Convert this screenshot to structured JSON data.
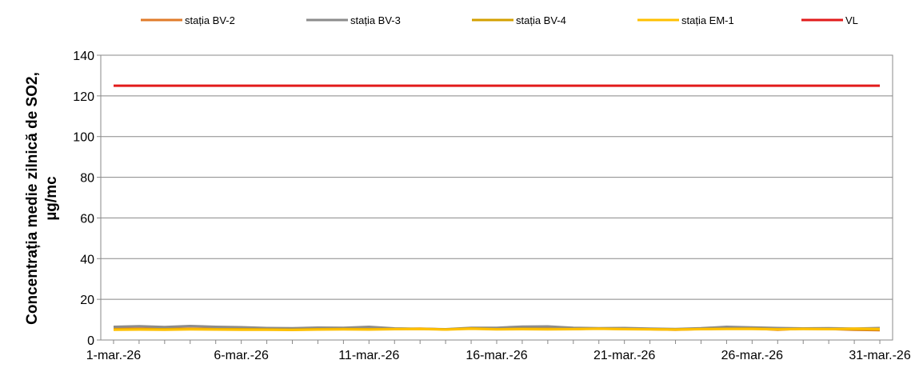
{
  "chart_data": {
    "type": "line",
    "title": "",
    "xlabel": "",
    "ylabel_line1": "Concentrația medie zilnică de SO2,",
    "ylabel_line2": "µg/mc",
    "ylim": [
      0,
      140
    ],
    "yticks": [
      "0",
      "20",
      "40",
      "60",
      "80",
      "100",
      "120",
      "140"
    ],
    "x_tick_labels": [
      "1-mar.-26",
      "6-mar.-26",
      "11-mar.-26",
      "16-mar.-26",
      "21-mar.-26",
      "26-mar.-26",
      "31-mar.-26"
    ],
    "x_tick_days": [
      1,
      6,
      11,
      16,
      21,
      26,
      31
    ],
    "x_days": [
      1,
      2,
      3,
      4,
      5,
      6,
      7,
      8,
      9,
      10,
      11,
      12,
      13,
      14,
      15,
      16,
      17,
      18,
      19,
      20,
      21,
      22,
      23,
      24,
      25,
      26,
      27,
      28,
      29,
      30,
      31
    ],
    "grid": true,
    "legend_position": "top",
    "series": [
      {
        "name": "stația BV-2",
        "color": "#E07B2A",
        "values": [
          5.5,
          5.6,
          5.5,
          5.6,
          5.5,
          5.4,
          5.3,
          5.2,
          5.4,
          5.5,
          5.3,
          5.4,
          5.6,
          5.2,
          5.8,
          5.3,
          5.6,
          5.5,
          5.4,
          5.6,
          5.5,
          5.3,
          5.0,
          5.4,
          5.6,
          5.7,
          5.0,
          5.6,
          5.4,
          5.0,
          4.8
        ]
      },
      {
        "name": "stația BV-3",
        "color": "#8C8C8C",
        "values": [
          6.5,
          6.8,
          6.4,
          6.9,
          6.5,
          6.3,
          5.9,
          5.8,
          6.1,
          6.0,
          6.5,
          5.7,
          5.5,
          5.3,
          6.0,
          6.0,
          6.6,
          6.7,
          6.0,
          5.8,
          5.9,
          5.6,
          5.4,
          5.8,
          6.5,
          6.2,
          5.9,
          5.7,
          5.8,
          5.6,
          5.9
        ]
      },
      {
        "name": "stația BV-4",
        "color": "#D4A000",
        "values": [
          5.2,
          5.3,
          5.3,
          5.4,
          5.3,
          5.3,
          5.2,
          5.1,
          5.3,
          5.4,
          5.3,
          5.4,
          5.5,
          5.2,
          5.7,
          5.3,
          5.5,
          5.4,
          5.4,
          5.6,
          5.4,
          5.3,
          5.2,
          5.4,
          5.5,
          5.6,
          5.3,
          5.5,
          5.4,
          5.3,
          5.2
        ]
      },
      {
        "name": "stația EM-1",
        "color": "#FFC000",
        "values": [
          5.0,
          5.1,
          5.0,
          5.2,
          5.1,
          5.0,
          5.0,
          4.9,
          5.1,
          5.2,
          5.1,
          5.3,
          5.4,
          5.1,
          5.5,
          5.2,
          5.3,
          5.2,
          5.3,
          5.5,
          5.3,
          5.2,
          5.1,
          5.3,
          5.4,
          5.4,
          5.2,
          5.4,
          5.3,
          5.6,
          5.4
        ]
      },
      {
        "name": "VL",
        "color": "#E21B1B",
        "values": [
          125,
          125,
          125,
          125,
          125,
          125,
          125,
          125,
          125,
          125,
          125,
          125,
          125,
          125,
          125,
          125,
          125,
          125,
          125,
          125,
          125,
          125,
          125,
          125,
          125,
          125,
          125,
          125,
          125,
          125,
          125
        ]
      }
    ]
  }
}
